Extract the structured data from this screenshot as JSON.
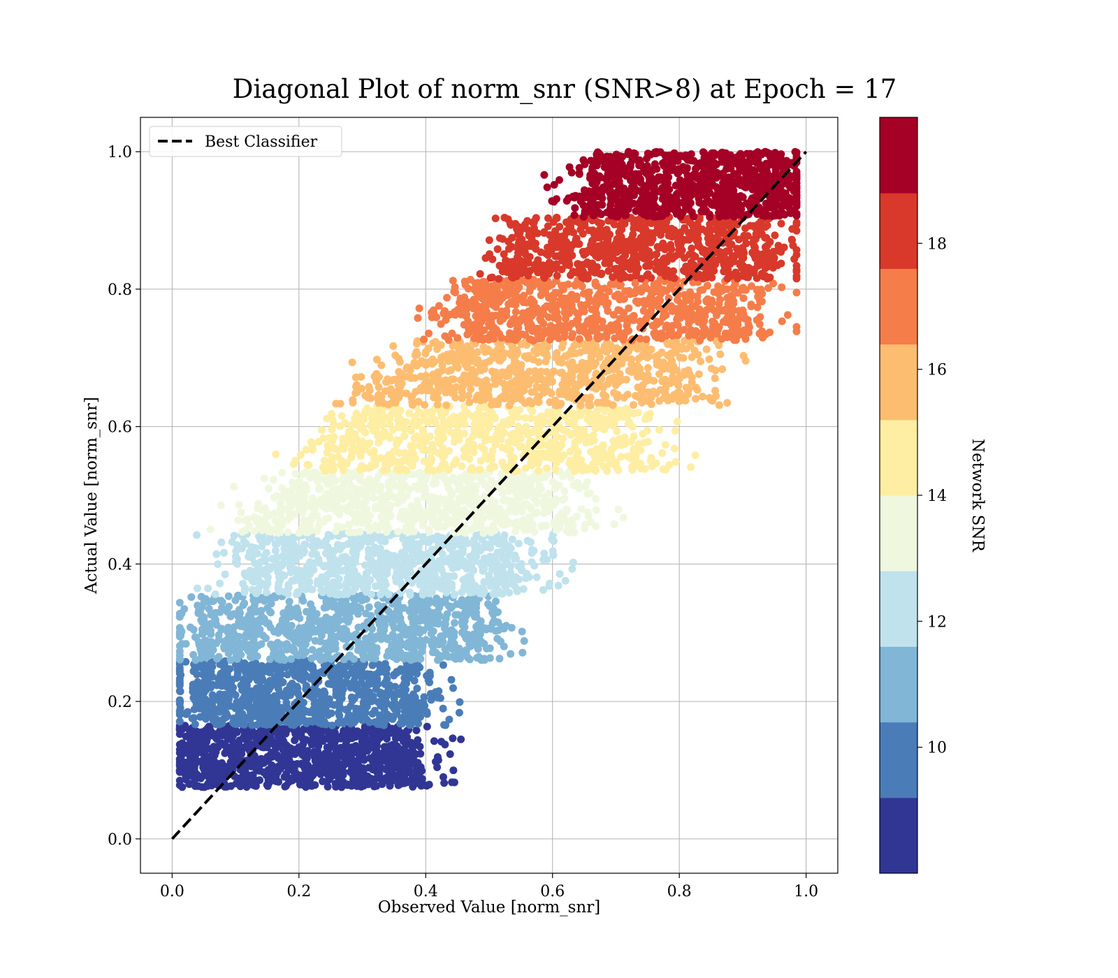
{
  "chart_data": {
    "type": "scatter",
    "title": "Diagonal Plot of norm_snr (SNR>8) at Epoch = 17",
    "xlabel": "Observed Value [norm_snr]",
    "ylabel": "Actual Value [norm_snr]",
    "xlim": [
      -0.05,
      1.05
    ],
    "ylim": [
      -0.05,
      1.05
    ],
    "xticks": [
      "0.0",
      "0.2",
      "0.4",
      "0.6",
      "0.8",
      "1.0"
    ],
    "yticks": [
      "0.0",
      "0.2",
      "0.4",
      "0.6",
      "0.8",
      "1.0"
    ],
    "grid": true,
    "legend": {
      "placement": "top-left",
      "entries": [
        {
          "label": "Best Classifier",
          "style": "black dashed line"
        }
      ]
    },
    "reference_line": {
      "name": "Best Classifier",
      "x": [
        0.0,
        1.0
      ],
      "y": [
        0.0,
        1.0
      ]
    },
    "colorbar": {
      "label": "Network SNR",
      "range": [
        8,
        20
      ],
      "ticks": [
        "10",
        "12",
        "14",
        "16",
        "18"
      ],
      "tick_values": [
        10,
        12,
        14,
        16,
        18
      ],
      "levels": [
        {
          "from": 8.0,
          "to": 9.2,
          "color": "#313695"
        },
        {
          "from": 9.2,
          "to": 10.4,
          "color": "#4a7db8"
        },
        {
          "from": 10.4,
          "to": 11.6,
          "color": "#81b6d6"
        },
        {
          "from": 11.6,
          "to": 12.8,
          "color": "#bfe2ed"
        },
        {
          "from": 12.8,
          "to": 14.0,
          "color": "#eff8df"
        },
        {
          "from": 14.0,
          "to": 15.2,
          "color": "#feeea3"
        },
        {
          "from": 15.2,
          "to": 16.4,
          "color": "#fdbd71"
        },
        {
          "from": 16.4,
          "to": 17.6,
          "color": "#f57d4a"
        },
        {
          "from": 17.6,
          "to": 18.8,
          "color": "#d8392a"
        },
        {
          "from": 18.8,
          "to": 20.0,
          "color": "#a50026"
        }
      ]
    },
    "bands": [
      {
        "y": [
          0.075,
          0.165
        ],
        "x_at_top": [
          0.02,
          0.37
        ],
        "x_at_bottom": [
          0.02,
          0.4
        ],
        "color": "#313695",
        "n": 900
      },
      {
        "y": [
          0.165,
          0.26
        ],
        "x_at_top": [
          0.03,
          0.38
        ],
        "x_at_bottom": [
          0.03,
          0.4
        ],
        "color": "#4a7db8",
        "n": 800
      },
      {
        "y": [
          0.26,
          0.355
        ],
        "x_at_top": [
          0.04,
          0.48
        ],
        "x_at_bottom": [
          0.04,
          0.5
        ],
        "color": "#81b6d6",
        "n": 800
      },
      {
        "y": [
          0.355,
          0.445
        ],
        "x_at_top": [
          0.14,
          0.55
        ],
        "x_at_bottom": [
          0.1,
          0.55
        ],
        "color": "#bfe2ed",
        "n": 750
      },
      {
        "y": [
          0.445,
          0.535
        ],
        "x_at_top": [
          0.2,
          0.6
        ],
        "x_at_bottom": [
          0.13,
          0.64
        ],
        "color": "#eff8df",
        "n": 700
      },
      {
        "y": [
          0.535,
          0.63
        ],
        "x_at_top": [
          0.3,
          0.72
        ],
        "x_at_bottom": [
          0.23,
          0.74
        ],
        "color": "#feeea3",
        "n": 700
      },
      {
        "y": [
          0.63,
          0.725
        ],
        "x_at_top": [
          0.4,
          0.82
        ],
        "x_at_bottom": [
          0.3,
          0.82
        ],
        "color": "#fdbd71",
        "n": 700
      },
      {
        "y": [
          0.725,
          0.815
        ],
        "x_at_top": [
          0.48,
          0.9
        ],
        "x_at_bottom": [
          0.43,
          0.92
        ],
        "color": "#f57d4a",
        "n": 700
      },
      {
        "y": [
          0.815,
          0.905
        ],
        "x_at_top": [
          0.55,
          0.94
        ],
        "x_at_bottom": [
          0.53,
          0.95
        ],
        "color": "#d8392a",
        "n": 750
      },
      {
        "y": [
          0.905,
          1.0
        ],
        "x_at_top": [
          0.67,
          0.98
        ],
        "x_at_bottom": [
          0.64,
          0.98
        ],
        "color": "#a50026",
        "n": 800
      }
    ]
  }
}
